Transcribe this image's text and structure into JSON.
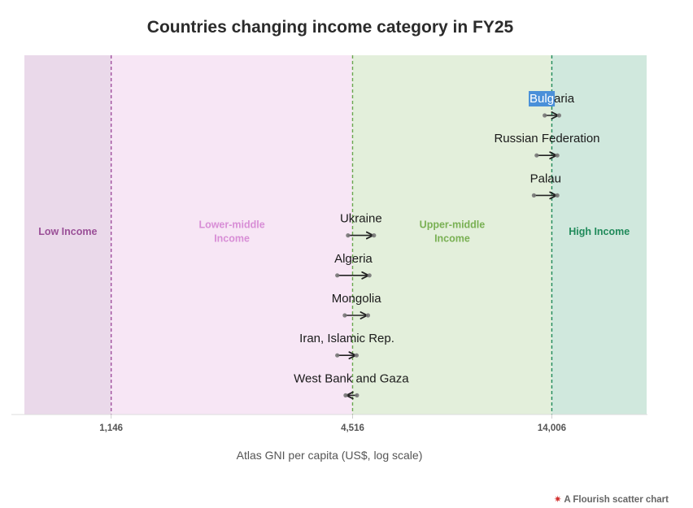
{
  "title": "Countries changing income category in FY25",
  "credit": {
    "text": "A Flourish scatter chart",
    "icon": "flourish-star-icon",
    "icon_glyph": "✷",
    "icon_color": "#d2312f"
  },
  "chart_data": {
    "type": "scatter",
    "title": "Countries changing income category in FY25",
    "xlabel": "Atlas GNI per capita (US$, log scale)",
    "ylabel": "",
    "x_scale": "log",
    "xlim": [
      700,
      24000
    ],
    "x_ticks": [
      {
        "value": 1146,
        "label": "1,146"
      },
      {
        "value": 4516,
        "label": "4,516"
      },
      {
        "value": 14006,
        "label": "14,006"
      }
    ],
    "grid": false,
    "bands": [
      {
        "name": "Low Income",
        "from": 700,
        "to": 1146,
        "fill": "#ead9ea",
        "text_color": "#9a4f97"
      },
      {
        "name": "Lower-middle Income",
        "lines": [
          "Lower-middle",
          "Income"
        ],
        "from": 1146,
        "to": 4516,
        "fill": "#f7e6f5",
        "text_color": "#d88ed6"
      },
      {
        "name": "Upper-middle Income",
        "lines": [
          "Upper-middle",
          "Income"
        ],
        "from": 4516,
        "to": 14006,
        "fill": "#e3efdb",
        "text_color": "#79b053"
      },
      {
        "name": "High Income",
        "from": 14006,
        "to": 24000,
        "fill": "#d0e8dd",
        "text_color": "#1f8a5a"
      }
    ],
    "threshold_colors": [
      "#a04f9e",
      "#6aa84f",
      "#1f8a5a"
    ],
    "arrow_color": "#222222",
    "countries": [
      {
        "name": "Bulgaria",
        "from": 13450,
        "to": 14600,
        "highlight_chars": 4,
        "highlight_color": "#4a90d9"
      },
      {
        "name": "Russian Federation",
        "from": 12850,
        "to": 14450
      },
      {
        "name": "Palau",
        "from": 12650,
        "to": 14450
      },
      {
        "name": "Ukraine",
        "from": 4400,
        "to": 5100
      },
      {
        "name": "Algeria",
        "from": 4140,
        "to": 4970
      },
      {
        "name": "Mongolia",
        "from": 4320,
        "to": 4930
      },
      {
        "name": "Iran, Islamic Rep.",
        "from": 4140,
        "to": 4620
      },
      {
        "name": "West Bank and Gaza",
        "from": 4630,
        "to": 4340
      }
    ]
  }
}
